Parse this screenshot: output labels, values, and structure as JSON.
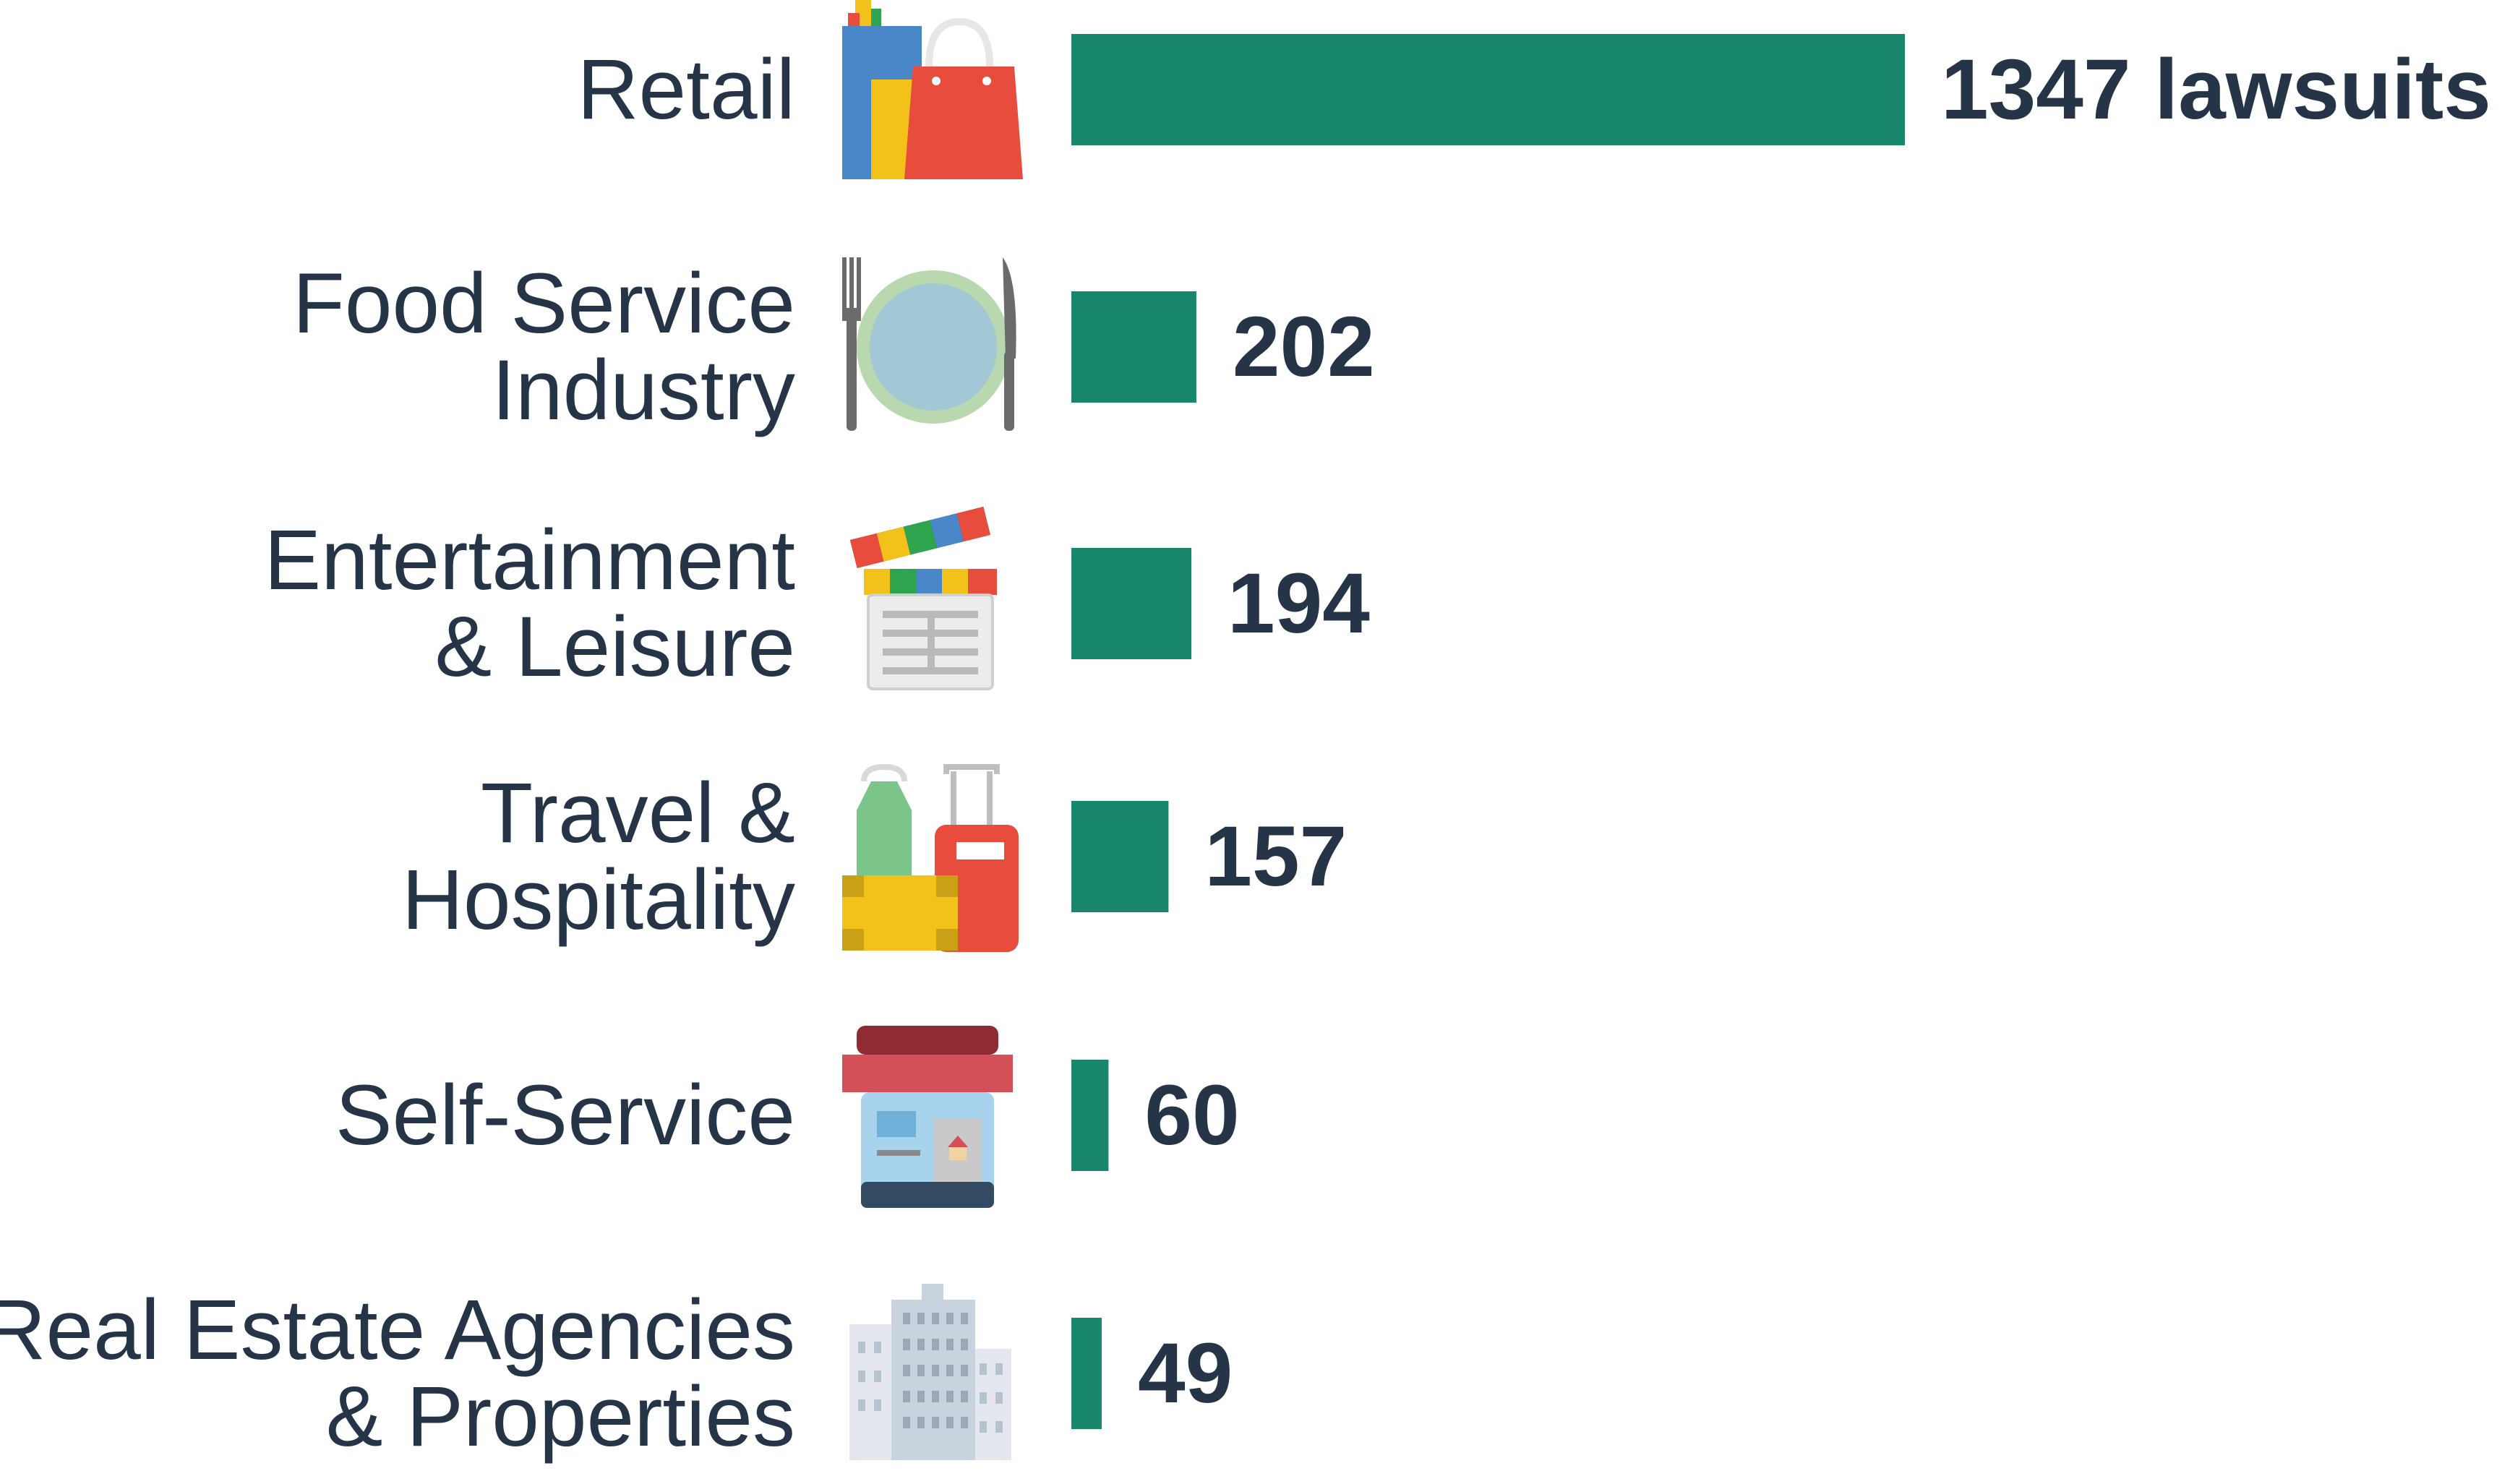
{
  "chart_data": {
    "type": "bar",
    "orientation": "horizontal",
    "categories": [
      [
        "Retail"
      ],
      [
        "Food Service",
        "Industry"
      ],
      [
        "Entertainment",
        "& Leisure"
      ],
      [
        "Travel &",
        "Hospitality"
      ],
      [
        "Self-Service"
      ],
      [
        "Real Estate Agencies",
        "& Properties"
      ]
    ],
    "values": [
      1347,
      202,
      194,
      157,
      60,
      49
    ],
    "value_labels": [
      "1347 lawsuits",
      "202",
      "194",
      "157",
      "60",
      "49"
    ],
    "icons": [
      "shopping-bags-icon",
      "plate-cutlery-icon",
      "clapperboard-icon",
      "luggage-icon",
      "storefront-tablet-icon",
      "buildings-icon"
    ],
    "bar_color": "#17866b",
    "xlim": [
      0,
      1347
    ],
    "grid": false,
    "legend": "none"
  }
}
